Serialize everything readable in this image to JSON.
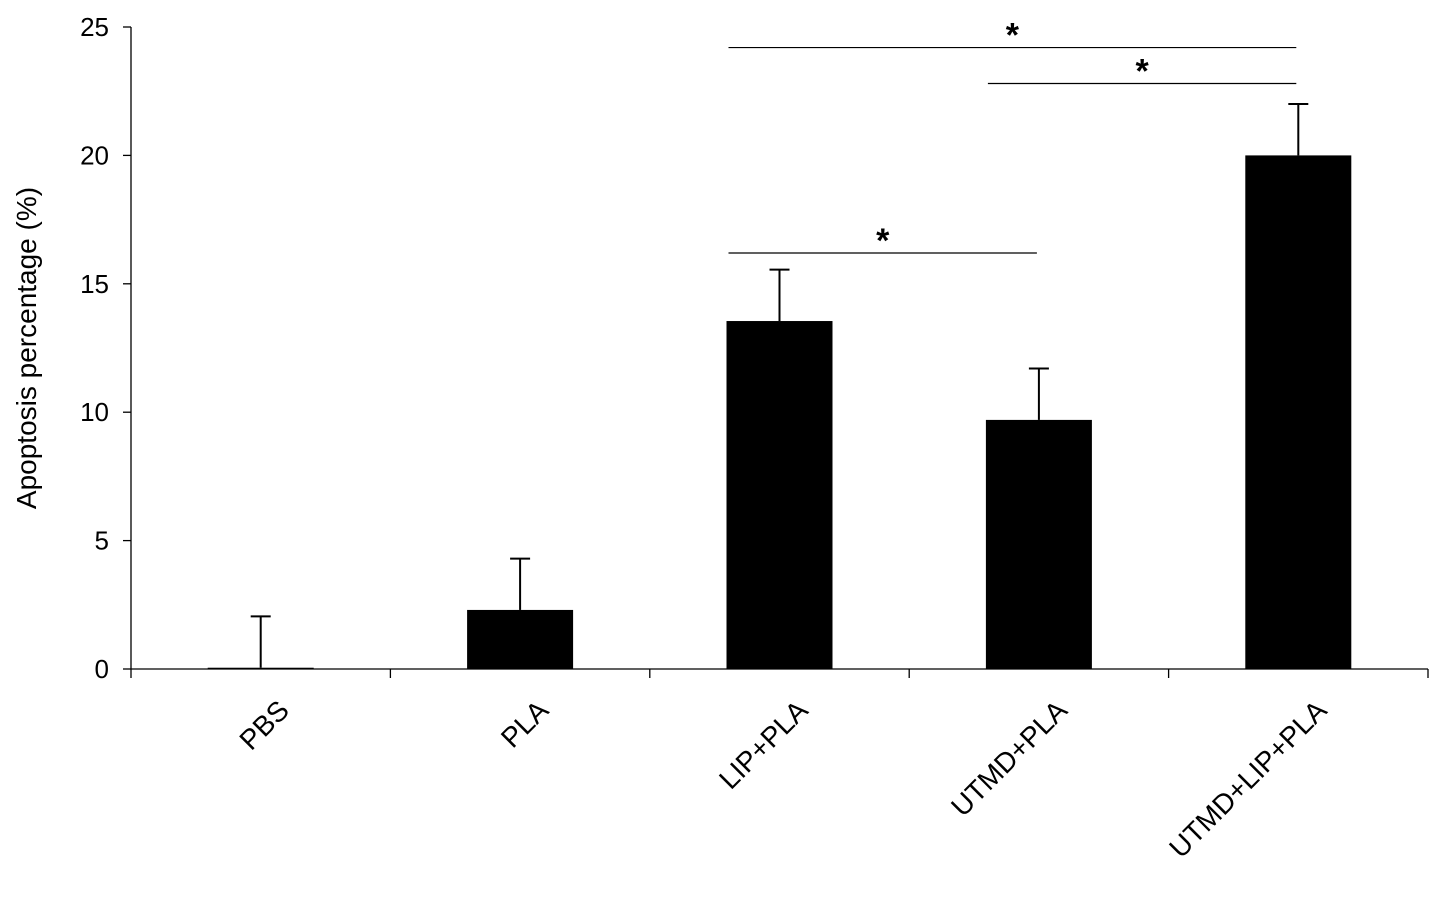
{
  "chart_data": {
    "type": "bar",
    "title": "",
    "xlabel": "",
    "ylabel": "Apoptosis percentage (%)",
    "ylim": [
      0,
      25
    ],
    "yticks": [
      0,
      5,
      10,
      15,
      20,
      25
    ],
    "categories": [
      "PBS",
      "PLA",
      "LIP+PLA",
      "UTMD+PLA",
      "UTMD+LIP+PLA"
    ],
    "values": [
      0.05,
      2.3,
      13.55,
      9.7,
      20.0
    ],
    "errors": [
      2.0,
      2.0,
      2.0,
      2.0,
      2.0
    ],
    "bar_color": "#000000",
    "grid": false,
    "legend": "none",
    "significance": [
      {
        "from": 2,
        "to": 3,
        "y": 16.2,
        "label": "*"
      },
      {
        "from": 3,
        "to": 4,
        "y": 22.8,
        "label": "*"
      },
      {
        "from": 2,
        "to": 4,
        "y": 24.2,
        "label": "*"
      }
    ]
  }
}
